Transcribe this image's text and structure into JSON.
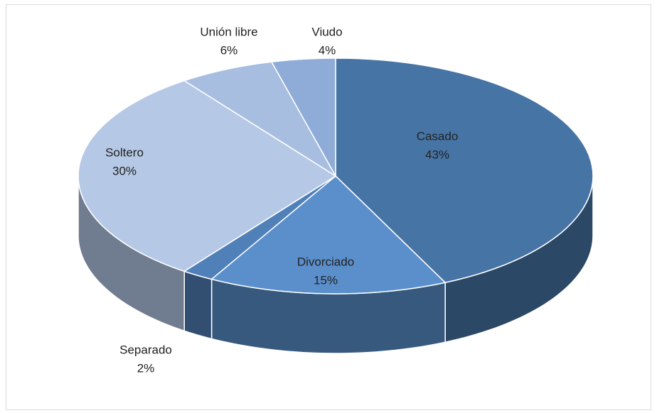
{
  "chart_data": {
    "type": "pie",
    "categories": [
      "Casado",
      "Divorciado",
      "Separado",
      "Soltero",
      "Unión libre",
      "Viudo"
    ],
    "values": [
      43,
      15,
      2,
      30,
      6,
      4
    ],
    "value_labels": [
      "43%",
      "15%",
      "2%",
      "30%",
      "6%",
      "4%"
    ],
    "colors": [
      "#4674a5",
      "#5b8fcb",
      "#5080b8",
      "#b5c8e6",
      "#a7bee0",
      "#8facd9"
    ]
  }
}
